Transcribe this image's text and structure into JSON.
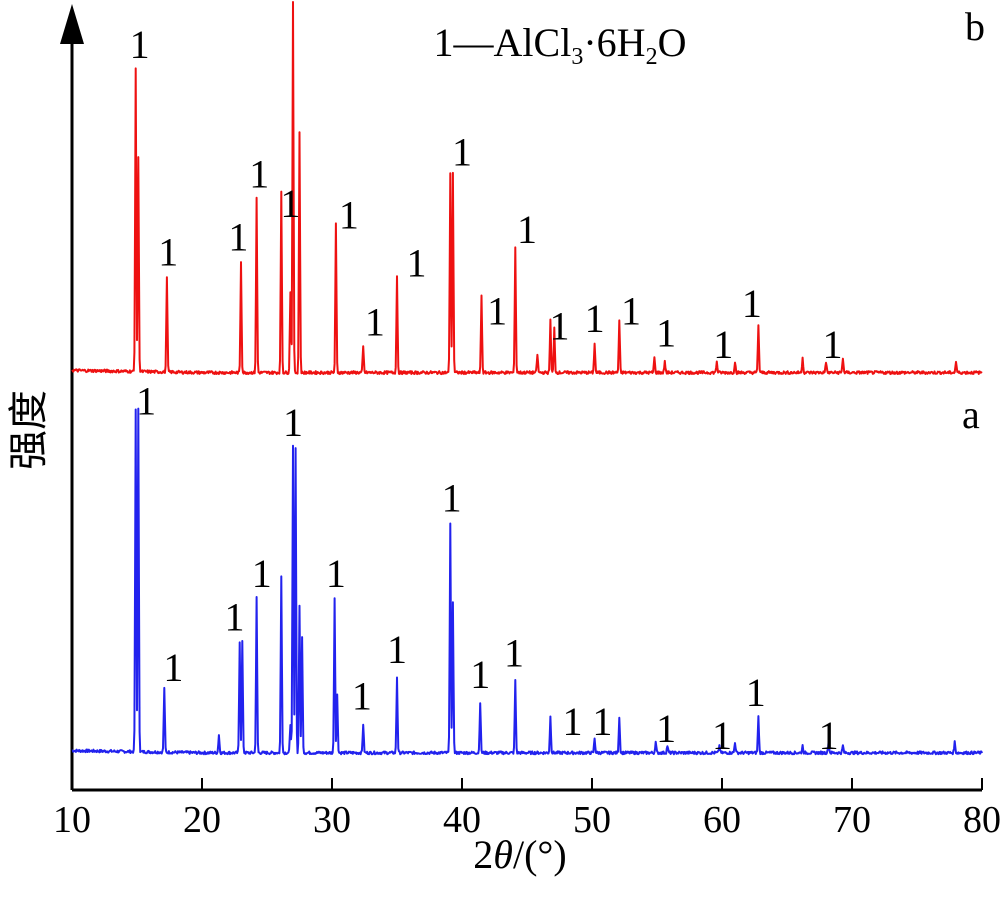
{
  "chart_data": {
    "type": "line",
    "xlabel": "2θ/(°)",
    "ylabel": "强度",
    "xlim": [
      10,
      80
    ],
    "x_ticks": [
      10,
      20,
      30,
      40,
      50,
      60,
      70,
      80
    ],
    "x_tick_labels": [
      "10",
      "20",
      "30",
      "40",
      "50",
      "60",
      "70",
      "80"
    ],
    "legend_text": "1—AlCl₃·6H₂O",
    "grid": false,
    "y_ticks_shown": false,
    "series": [
      {
        "name": "a",
        "color": "#2222ee",
        "baseline": 0.02,
        "peaks": [
          {
            "x": 14.9,
            "y": 0.95
          },
          {
            "x": 15.1,
            "y": 0.95
          },
          {
            "x": 17.1,
            "y": 0.18
          },
          {
            "x": 21.3,
            "y": 0.05
          },
          {
            "x": 22.9,
            "y": 0.31
          },
          {
            "x": 23.1,
            "y": 0.31
          },
          {
            "x": 24.2,
            "y": 0.43
          },
          {
            "x": 26.1,
            "y": 0.49
          },
          {
            "x": 26.8,
            "y": 0.08
          },
          {
            "x": 27.0,
            "y": 0.85
          },
          {
            "x": 27.2,
            "y": 0.85
          },
          {
            "x": 27.5,
            "y": 0.41
          },
          {
            "x": 27.7,
            "y": 0.32
          },
          {
            "x": 30.2,
            "y": 0.43
          },
          {
            "x": 30.4,
            "y": 0.16
          },
          {
            "x": 32.4,
            "y": 0.08
          },
          {
            "x": 35.0,
            "y": 0.21
          },
          {
            "x": 39.1,
            "y": 0.64
          },
          {
            "x": 39.3,
            "y": 0.42
          },
          {
            "x": 41.4,
            "y": 0.14
          },
          {
            "x": 44.1,
            "y": 0.2
          },
          {
            "x": 46.8,
            "y": 0.1
          },
          {
            "x": 50.2,
            "y": 0.04
          },
          {
            "x": 52.1,
            "y": 0.1
          },
          {
            "x": 54.9,
            "y": 0.03
          },
          {
            "x": 55.8,
            "y": 0.02
          },
          {
            "x": 59.8,
            "y": 0.02
          },
          {
            "x": 61.0,
            "y": 0.03
          },
          {
            "x": 62.8,
            "y": 0.1
          },
          {
            "x": 66.2,
            "y": 0.02
          },
          {
            "x": 68.2,
            "y": 0.03
          },
          {
            "x": 69.3,
            "y": 0.02
          },
          {
            "x": 77.9,
            "y": 0.03
          }
        ],
        "peak_markers": [
          {
            "x": 15.7,
            "y": 0.96,
            "label": "1"
          },
          {
            "x": 17.8,
            "y": 0.22,
            "label": "1"
          },
          {
            "x": 22.5,
            "y": 0.36,
            "label": "1"
          },
          {
            "x": 24.6,
            "y": 0.48,
            "label": "1"
          },
          {
            "x": 27.0,
            "y": 0.9,
            "label": "1"
          },
          {
            "x": 30.3,
            "y": 0.48,
            "label": "1"
          },
          {
            "x": 32.3,
            "y": 0.14,
            "label": "1"
          },
          {
            "x": 35.0,
            "y": 0.27,
            "label": "1"
          },
          {
            "x": 39.2,
            "y": 0.69,
            "label": "1"
          },
          {
            "x": 41.4,
            "y": 0.2,
            "label": "1"
          },
          {
            "x": 44.0,
            "y": 0.26,
            "label": "1"
          },
          {
            "x": 48.5,
            "y": 0.07,
            "label": "1"
          },
          {
            "x": 50.8,
            "y": 0.07,
            "label": "1"
          },
          {
            "x": 55.7,
            "y": 0.05,
            "label": "1"
          },
          {
            "x": 60.0,
            "y": 0.03,
            "label": "1"
          },
          {
            "x": 62.6,
            "y": 0.15,
            "label": "1"
          },
          {
            "x": 68.2,
            "y": 0.03,
            "label": "1"
          }
        ]
      },
      {
        "name": "b",
        "color": "#ee1111",
        "baseline": 0.02,
        "peaks": [
          {
            "x": 14.9,
            "y": 0.82
          },
          {
            "x": 15.1,
            "y": 0.58
          },
          {
            "x": 17.3,
            "y": 0.26
          },
          {
            "x": 23.0,
            "y": 0.3
          },
          {
            "x": 24.2,
            "y": 0.47
          },
          {
            "x": 26.1,
            "y": 0.49
          },
          {
            "x": 26.8,
            "y": 0.22
          },
          {
            "x": 27.0,
            "y": 1.0
          },
          {
            "x": 27.5,
            "y": 0.65
          },
          {
            "x": 30.3,
            "y": 0.4
          },
          {
            "x": 32.4,
            "y": 0.07
          },
          {
            "x": 35.0,
            "y": 0.26
          },
          {
            "x": 39.1,
            "y": 0.54
          },
          {
            "x": 39.3,
            "y": 0.54
          },
          {
            "x": 41.5,
            "y": 0.21
          },
          {
            "x": 44.1,
            "y": 0.34
          },
          {
            "x": 45.8,
            "y": 0.05
          },
          {
            "x": 46.8,
            "y": 0.14
          },
          {
            "x": 47.1,
            "y": 0.12
          },
          {
            "x": 50.2,
            "y": 0.08
          },
          {
            "x": 52.1,
            "y": 0.14
          },
          {
            "x": 54.8,
            "y": 0.04
          },
          {
            "x": 55.6,
            "y": 0.03
          },
          {
            "x": 59.6,
            "y": 0.03
          },
          {
            "x": 61.0,
            "y": 0.03
          },
          {
            "x": 62.8,
            "y": 0.13
          },
          {
            "x": 66.2,
            "y": 0.04
          },
          {
            "x": 68.0,
            "y": 0.03
          },
          {
            "x": 69.3,
            "y": 0.04
          },
          {
            "x": 78.0,
            "y": 0.03
          }
        ],
        "peak_markers": [
          {
            "x": 15.2,
            "y": 0.87,
            "label": "1"
          },
          {
            "x": 17.4,
            "y": 0.31,
            "label": "1"
          },
          {
            "x": 22.8,
            "y": 0.35,
            "label": "1"
          },
          {
            "x": 24.4,
            "y": 0.52,
            "label": "1"
          },
          {
            "x": 26.8,
            "y": 0.44,
            "label": "1"
          },
          {
            "x": 28.0,
            "y": 1.04,
            "label": "1"
          },
          {
            "x": 31.3,
            "y": 0.41,
            "label": "1"
          },
          {
            "x": 33.3,
            "y": 0.12,
            "label": "1"
          },
          {
            "x": 36.5,
            "y": 0.28,
            "label": "1"
          },
          {
            "x": 40.0,
            "y": 0.58,
            "label": "1"
          },
          {
            "x": 42.7,
            "y": 0.15,
            "label": "1"
          },
          {
            "x": 45.0,
            "y": 0.37,
            "label": "1"
          },
          {
            "x": 47.5,
            "y": 0.11,
            "label": "1"
          },
          {
            "x": 50.2,
            "y": 0.13,
            "label": "1"
          },
          {
            "x": 53.0,
            "y": 0.15,
            "label": "1"
          },
          {
            "x": 55.7,
            "y": 0.09,
            "label": "1"
          },
          {
            "x": 60.1,
            "y": 0.06,
            "label": "1"
          },
          {
            "x": 62.3,
            "y": 0.17,
            "label": "1"
          },
          {
            "x": 68.5,
            "y": 0.06,
            "label": "1"
          }
        ]
      }
    ]
  }
}
